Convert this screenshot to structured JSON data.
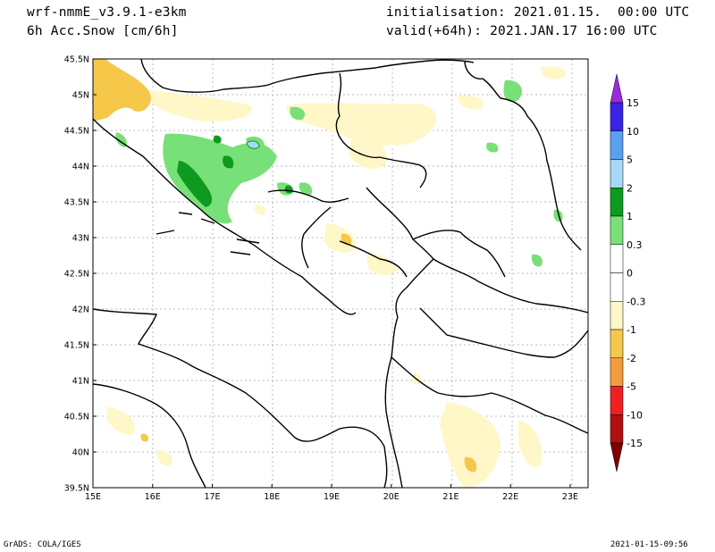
{
  "header": {
    "model": "wrf-nmmE_v3.9.1-e3km",
    "variable": "6h Acc.Snow [cm/6h]",
    "init": "initialisation: 2021.01.15.  00:00 UTC",
    "valid": "valid(+64h): 2021.JAN.17 16:00 UTC"
  },
  "footer": {
    "credit": "GrADS: COLA/IGES",
    "timestamp": "2021-01-15-09:56"
  },
  "map": {
    "lon_ticks": [
      "15E",
      "16E",
      "17E",
      "18E",
      "19E",
      "20E",
      "21E",
      "22E",
      "23E"
    ],
    "lat_ticks": [
      "45.5N",
      "45N",
      "44.5N",
      "44N",
      "43.5N",
      "43N",
      "42.5N",
      "42N",
      "41.5N",
      "41N",
      "40.5N",
      "40N",
      "39.5N"
    ],
    "lon_range": [
      15,
      23.3
    ],
    "lat_range": [
      39.5,
      45.5
    ],
    "grid": true,
    "border_color": "#000000",
    "gridline_color": "#bbbbbb"
  },
  "colorbar": {
    "labels": [
      "15",
      "10",
      "5",
      "2",
      "1",
      "0.3",
      "0",
      "-0.3",
      "-1",
      "-2",
      "-5",
      "-10",
      "-15"
    ],
    "segments": [
      {
        "color": "#3a22e6"
      },
      {
        "color": "#5aa0f0"
      },
      {
        "color": "#a6d8f8"
      },
      {
        "color": "#0e9a1e"
      },
      {
        "color": "#78e078"
      },
      {
        "color": "#ffffff"
      },
      {
        "color": "#ffffff"
      },
      {
        "color": "#fff7c8"
      },
      {
        "color": "#f5c84a"
      },
      {
        "color": "#f29c40"
      },
      {
        "color": "#f02020"
      },
      {
        "color": "#b01010"
      }
    ],
    "top_arrow_color": "#9a2ae0",
    "bottom_arrow_color": "#800000"
  }
}
